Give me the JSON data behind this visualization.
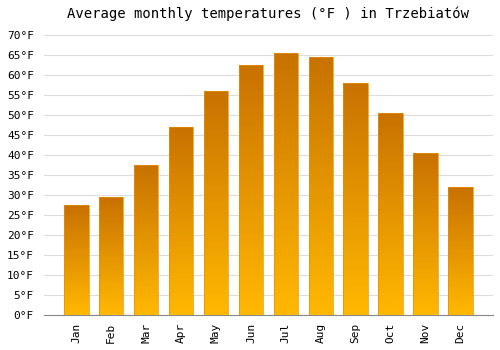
{
  "title": "Average monthly temperatures (°F ) in Trzebiatów",
  "months": [
    "Jan",
    "Feb",
    "Mar",
    "Apr",
    "May",
    "Jun",
    "Jul",
    "Aug",
    "Sep",
    "Oct",
    "Nov",
    "Dec"
  ],
  "values": [
    27.5,
    29.5,
    37.5,
    47.0,
    56.0,
    62.5,
    65.5,
    64.5,
    58.0,
    50.5,
    40.5,
    32.0
  ],
  "bar_color_top": "#FFA500",
  "bar_color_bottom": "#FFD060",
  "bar_edge_color": "#E89000",
  "background_color": "#FFFFFF",
  "grid_color": "#DDDDDD",
  "ylim": [
    0,
    72
  ],
  "yticks": [
    0,
    5,
    10,
    15,
    20,
    25,
    30,
    35,
    40,
    45,
    50,
    55,
    60,
    65,
    70
  ],
  "title_fontsize": 10,
  "tick_fontsize": 8,
  "font_family": "monospace"
}
